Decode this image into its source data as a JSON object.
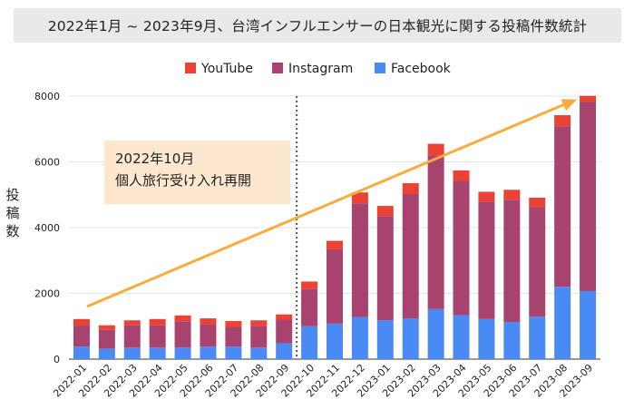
{
  "title": "2022年1月 ~ 2023年9月、台湾インフルエンサーの日本観光に関する投稿件数統計",
  "annotation": {
    "line1": "2022年10月",
    "line2": "個人旅行受け入れ再開"
  },
  "colors": {
    "youtube": "#ea4335",
    "instagram": "#a8436f",
    "facebook": "#4a8af4",
    "trend_arrow": "#f6ad3c",
    "annotation_bg": "#fde7cf",
    "divider": "#555555",
    "grid": "#e3e3e3"
  },
  "chart_data": {
    "type": "bar",
    "stacked": true,
    "title": "",
    "xlabel": "",
    "ylabel": "投稿数",
    "ylim": [
      0,
      8000
    ],
    "yticks": [
      0,
      2000,
      4000,
      6000,
      8000
    ],
    "legend_position": "top-center",
    "grid": true,
    "categories": [
      "2022-01",
      "2022-02",
      "2022-03",
      "2022-04",
      "2022-05",
      "2022-06",
      "2022-07",
      "2022-08",
      "2022-09",
      "2022-10",
      "2022-11",
      "2022-12",
      "2023-01",
      "2023-02",
      "2023-03",
      "2023-04",
      "2023-05",
      "2023-06",
      "2023-07",
      "2023-08",
      "2023-09"
    ],
    "series": [
      {
        "name": "Facebook",
        "color": "#4a8af4",
        "values": [
          380,
          320,
          350,
          350,
          350,
          380,
          380,
          350,
          480,
          1000,
          1080,
          1280,
          1180,
          1240,
          1520,
          1340,
          1220,
          1130,
          1290,
          2200,
          2070
        ]
      },
      {
        "name": "Instagram",
        "color": "#a8436f",
        "values": [
          640,
          570,
          680,
          680,
          800,
          680,
          600,
          660,
          720,
          1130,
          2260,
          3460,
          3170,
          3780,
          4670,
          4080,
          3570,
          3720,
          3330,
          4880,
          5750
        ]
      },
      {
        "name": "YouTube",
        "color": "#ea4335",
        "values": [
          200,
          140,
          150,
          190,
          180,
          180,
          180,
          170,
          160,
          230,
          260,
          330,
          310,
          330,
          360,
          320,
          300,
          300,
          290,
          340,
          190
        ]
      }
    ],
    "divider_after_category": "2022-09",
    "trend_arrow": {
      "from": [
        "2022-01",
        1600
      ],
      "to": [
        "2023-09",
        7900
      ]
    }
  }
}
